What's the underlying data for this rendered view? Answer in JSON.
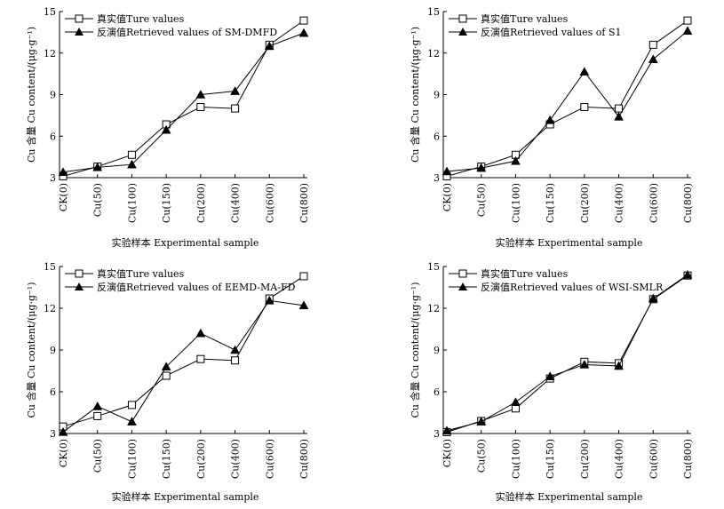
{
  "chart_data": [
    {
      "type": "line",
      "xlabel": "实验样本 Experimental sample",
      "ylabel": "Cu 含量 Cu content/(μg·g⁻¹)",
      "categories": [
        "CK(0)",
        "Cu(50)",
        "Cu(100)",
        "Cu(150)",
        "Cu(200)",
        "Cu(400)",
        "Cu(600)",
        "Cu(800)"
      ],
      "ylim": [
        3,
        15
      ],
      "yticks": [
        "3",
        "6",
        "9",
        "12",
        "15"
      ],
      "grid": false,
      "legend_position": "top-left",
      "series": [
        {
          "name": "真实值Ture values",
          "marker": "open-square",
          "values": [
            3.1,
            3.8,
            4.65,
            6.85,
            8.1,
            8.0,
            12.6,
            14.35
          ]
        },
        {
          "name": "反演值Retrieved values of SM-DMFD",
          "marker": "filled-triangle",
          "values": [
            3.4,
            3.75,
            3.95,
            6.45,
            9.0,
            9.25,
            12.5,
            13.45
          ]
        }
      ]
    },
    {
      "type": "line",
      "xlabel": "实验样本 Experimental sample",
      "ylabel": "Cu 含量 Cu content/(μg·g⁻¹)",
      "categories": [
        "CK(0)",
        "Cu(50)",
        "Cu(100)",
        "Cu(150)",
        "Cu(200)",
        "Cu(400)",
        "Cu(600)",
        "Cu(800)"
      ],
      "ylim": [
        3,
        15
      ],
      "yticks": [
        "3",
        "6",
        "9",
        "12",
        "15"
      ],
      "grid": false,
      "legend_position": "top-left",
      "series": [
        {
          "name": "真实值Ture values",
          "marker": "open-square",
          "values": [
            3.1,
            3.8,
            4.65,
            6.85,
            8.1,
            8.0,
            12.6,
            14.35
          ]
        },
        {
          "name": "反演值Retrieved values of S1",
          "marker": "filled-triangle",
          "values": [
            3.45,
            3.7,
            4.2,
            7.15,
            10.65,
            7.4,
            11.55,
            13.6
          ]
        }
      ]
    },
    {
      "type": "line",
      "xlabel": "实验样本 Experimental sample",
      "ylabel": "Cu 含量 Cu content/(μg·g⁻¹)",
      "categories": [
        "CK(0)",
        "Cu(50)",
        "Cu(100)",
        "Cu(150)",
        "Cu(200)",
        "Cu(400)",
        "Cu(600)",
        "Cu(800)"
      ],
      "ylim": [
        3,
        15
      ],
      "yticks": [
        "3",
        "6",
        "9",
        "12",
        "15"
      ],
      "grid": false,
      "legend_position": "top-left",
      "series": [
        {
          "name": "真实值Ture values",
          "marker": "open-square",
          "values": [
            3.5,
            4.25,
            5.05,
            7.15,
            8.35,
            8.25,
            12.7,
            14.3
          ]
        },
        {
          "name": "反演值Retrieved values of EEMD-MA-FD",
          "marker": "filled-triangle",
          "values": [
            3.1,
            4.95,
            3.85,
            7.8,
            10.2,
            9.0,
            12.55,
            12.2
          ]
        }
      ]
    },
    {
      "type": "line",
      "xlabel": "实验样本 Experimental sample",
      "ylabel": "Cu 含量 Cu content/(μg·g⁻¹)",
      "categories": [
        "CK(0)",
        "Cu(50)",
        "Cu(100)",
        "Cu(150)",
        "Cu(200)",
        "Cu(400)",
        "Cu(600)",
        "Cu(800)"
      ],
      "ylim": [
        3,
        15
      ],
      "yticks": [
        "3",
        "6",
        "9",
        "12",
        "15"
      ],
      "grid": false,
      "legend_position": "top-left",
      "series": [
        {
          "name": "真实值Ture values",
          "marker": "open-square",
          "values": [
            3.1,
            3.9,
            4.8,
            6.95,
            8.15,
            8.05,
            12.65,
            14.35
          ]
        },
        {
          "name": "反演值Retrieved values of WSI-SMLR",
          "marker": "filled-triangle",
          "values": [
            3.2,
            3.85,
            5.25,
            7.1,
            7.95,
            7.85,
            12.7,
            14.4
          ]
        }
      ]
    }
  ]
}
